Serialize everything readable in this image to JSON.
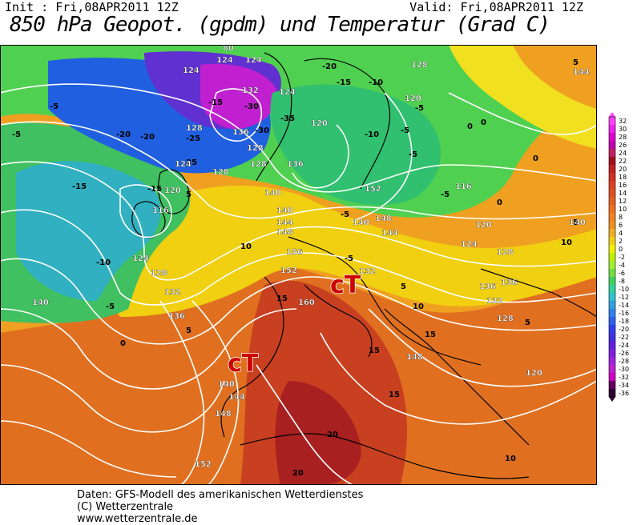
{
  "header": {
    "init": "Init : Fri,08APR2011 12Z",
    "valid": "Valid: Fri,08APR2011 12Z",
    "title": "850 hPa Geopot. (gpdm) und Temperatur (Grad C)"
  },
  "map": {
    "region": "Europe and North Atlantic",
    "airmass_labels": [
      "cT",
      "cT"
    ],
    "geopotential_labels": [
      "80",
      "124",
      "124",
      "124",
      "132",
      "136",
      "128",
      "128",
      "128",
      "128",
      "124",
      "124",
      "116",
      "120",
      "124",
      "128",
      "132",
      "136",
      "140",
      "140",
      "144",
      "148",
      "152",
      "156",
      "160",
      "140",
      "144",
      "148",
      "152",
      "136",
      "140",
      "144",
      "148",
      "152",
      "140",
      "136",
      "132",
      "128",
      "120",
      "116",
      "120",
      "124",
      "128",
      "136",
      "140",
      "144",
      "148",
      "120",
      "120",
      "128",
      "132"
    ],
    "temperature_labels": [
      "-20",
      "-15",
      "-10",
      "-5",
      "-5",
      "-20",
      "-25",
      "-30",
      "-35",
      "-30",
      "-25",
      "-10",
      "-15",
      "-5",
      "0",
      "5",
      "10",
      "15",
      "15",
      "20",
      "20",
      "15",
      "10",
      "5",
      "0",
      "-5",
      "-5",
      "-5",
      "-10",
      "-5",
      "-5",
      "0",
      "5",
      "10",
      "15",
      "10",
      "5",
      "0",
      "-5",
      "-15",
      "5",
      "0",
      "5",
      "-20",
      "-15"
    ],
    "colors": {
      "magenta": "#e000e0",
      "purple": "#8020e0",
      "blue": "#2040e0",
      "cyan": "#20b0e0",
      "green": "#30d060",
      "yellow": "#f0f000",
      "orange": "#f0a020",
      "red_orange": "#d05020",
      "dark_red": "#a02020",
      "contour": "#ffffff",
      "label_red": "#cc0000"
    }
  },
  "legend": {
    "ticks": [
      "32",
      "30",
      "28",
      "26",
      "24",
      "22",
      "20",
      "18",
      "16",
      "14",
      "12",
      "10",
      "8",
      "6",
      "4",
      "2",
      "0",
      "-2",
      "-4",
      "-6",
      "-8",
      "-10",
      "-12",
      "-14",
      "-16",
      "-18",
      "-20",
      "-22",
      "-24",
      "-26",
      "-28",
      "-30",
      "-32",
      "-34",
      "-36"
    ],
    "colors": [
      "#ff40ff",
      "#f020f0",
      "#e000d0",
      "#c000b0",
      "#c02060",
      "#a01020",
      "#c02020",
      "#d03020",
      "#e04020",
      "#e05020",
      "#e06020",
      "#f07020",
      "#f08020",
      "#f09020",
      "#f0b020",
      "#f0d010",
      "#f0f000",
      "#c0f000",
      "#a0f030",
      "#70e040",
      "#40d060",
      "#30d0a0",
      "#30c0d0",
      "#30a0e0",
      "#3080f0",
      "#3060f0",
      "#3040f0",
      "#4030e0",
      "#6020e0",
      "#8020e0",
      "#a020e0",
      "#c020d0",
      "#d000c0",
      "#600060",
      "#300030"
    ]
  },
  "footer": {
    "line1": "Daten: GFS-Modell des amerikanischen Wetterdienstes",
    "line2": "(C) Wetterzentrale",
    "line3": "www.wetterzentrale.de"
  }
}
